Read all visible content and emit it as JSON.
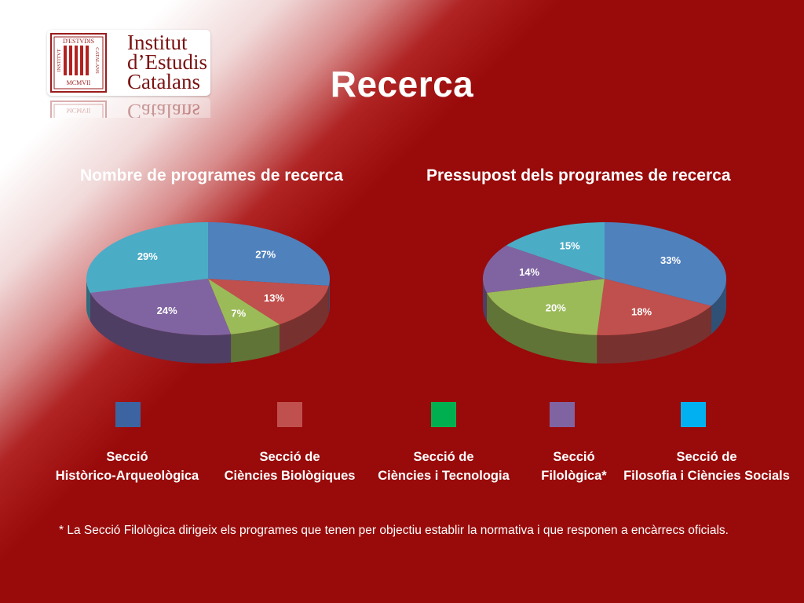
{
  "title": "Recerca",
  "logo": {
    "lines": [
      "Institut",
      "d’Estudis",
      "Catalans"
    ],
    "seal_text": [
      "D'ESTVDIS",
      "INSTITVT",
      "CATALANS",
      "MCMVII"
    ]
  },
  "legend": [
    {
      "line1": "Secció",
      "line2": "Històrico-Arqueològica",
      "color": "#3c64a0"
    },
    {
      "line1": "Secció de",
      "line2": "Ciències Biològiques",
      "color": "#c0504d"
    },
    {
      "line1": "Secció de",
      "line2": "Ciències i Tecnologia",
      "color": "#00b050"
    },
    {
      "line1": "Secció",
      "line2": "Filològica*",
      "color": "#8064a2"
    },
    {
      "line1": "Secció de",
      "line2": "Filosofia i Ciències Socials",
      "color": "#00b0f0"
    }
  ],
  "footnote": "* La Secció Filològica dirigeix els programes que tenen per objectiu establir la normativa i que responen a encàrrecs oficials.",
  "chart_data": [
    {
      "type": "pie",
      "title": "Nombre de programes de recerca",
      "labels": [
        "Secció Històrico-Arqueològica",
        "Secció de Ciències Biològiques",
        "Secció de Ciències i Tecnologia",
        "Secció Filològica*",
        "Secció de Filosofia i Ciències Socials"
      ],
      "values": [
        27,
        13,
        7,
        24,
        29
      ],
      "value_labels": [
        "27%",
        "13%",
        "7%",
        "24%",
        "29%"
      ],
      "colors": [
        "#4f81bd",
        "#c0504d",
        "#9bbb59",
        "#8064a2",
        "#4bacc6"
      ]
    },
    {
      "type": "pie",
      "title": "Pressupost dels programes de recerca",
      "labels": [
        "Secció Històrico-Arqueològica",
        "Secció de Ciències Biològiques",
        "Secció de Ciències i Tecnologia",
        "Secció Filològica*",
        "Secció de Filosofia i Ciències Socials"
      ],
      "values": [
        33,
        18,
        20,
        14,
        15
      ],
      "value_labels": [
        "33%",
        "18%",
        "20%",
        "14%",
        "15%"
      ],
      "colors": [
        "#4f81bd",
        "#c0504d",
        "#9bbb59",
        "#8064a2",
        "#4bacc6"
      ]
    }
  ]
}
